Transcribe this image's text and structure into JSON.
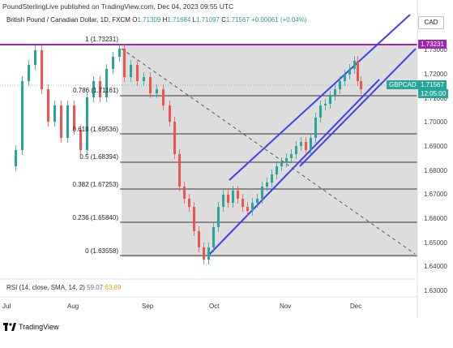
{
  "header": {
    "publisher_line": "PoundSterlingLive published on TradingView.com, Dec 04, 2023 09:55 UTC"
  },
  "legend": {
    "title": "British Pound / Canadian Dollar, 1D, FXCM",
    "o_label": "O",
    "o_value": "1.71309",
    "h_label": "H",
    "h_value": "1.71684",
    "l_label": "L",
    "l_value": "1.71097",
    "c_label": "C",
    "c_value": "1.71567",
    "change": "+0.00061 (+0.04%)"
  },
  "currency_button": "CAD",
  "price_axis": [
    "1.73000",
    "1.72000",
    "1.71000",
    "1.70000",
    "1.69000",
    "1.68000",
    "1.67000",
    "1.66000",
    "1.65000",
    "1.64000",
    "1.63000"
  ],
  "time_axis": [
    "Jul",
    "Aug",
    "Sep",
    "Oct",
    "Nov",
    "Dec"
  ],
  "tags": {
    "top_level": "1.73231",
    "symbol": "GBPCAD",
    "price": "1.71567",
    "countdown": "12:05:00"
  },
  "fib_levels": [
    {
      "label": "1 (1.73231)"
    },
    {
      "label": "0.786 (1.71161)"
    },
    {
      "label": "0.618 (1.69536)"
    },
    {
      "label": "0.5 (1.68394)"
    },
    {
      "label": "0.382 (1.67253)"
    },
    {
      "label": "0.236 (1.65840)"
    },
    {
      "label": "0 (1.63558)"
    }
  ],
  "rsi": {
    "label": "RSI (14, close, SMA, 14, 2)",
    "value1": "59.07",
    "value2": "63.89"
  },
  "footer": {
    "brand": "TradingView"
  },
  "colors": {
    "up": "#26a69a",
    "down": "#ef5350",
    "channel": "#3f3ff0",
    "top_line": "#9c27b0",
    "fib_area": "#dcdcdc"
  }
}
